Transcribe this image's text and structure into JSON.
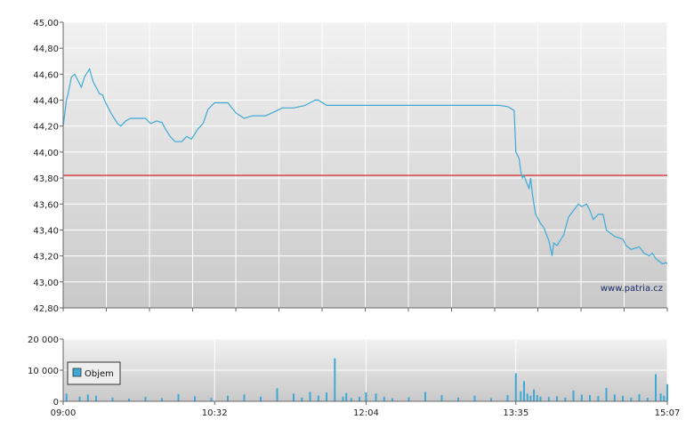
{
  "watermark": "www.patria.cz",
  "colors": {
    "price_line": "#3fa9d6",
    "reference_line": "#d94a4a",
    "volume_bar": "#3fa9d6",
    "grid": "#ffffff",
    "plot_bg_top": "#f2f2f2",
    "plot_bg_bottom": "#c9c9c9"
  },
  "chart_data": [
    {
      "type": "line",
      "y_ticks": [
        "45,00",
        "44,80",
        "44,60",
        "44,40",
        "44,20",
        "44,00",
        "43,80",
        "43,60",
        "43,40",
        "43,20",
        "43,00",
        "42,80"
      ],
      "ylim": [
        42.8,
        45.0
      ],
      "xlim": [
        "09:00",
        "15:07"
      ],
      "reference_value": 43.82,
      "grid": true,
      "series": [
        {
          "x": [
            "09:00",
            "09:02",
            "09:03",
            "09:05",
            "09:07",
            "09:11",
            "09:13",
            "09:14",
            "09:16",
            "09:18",
            "09:19",
            "09:20",
            "09:22",
            "09:24",
            "09:25",
            "09:27",
            "09:29",
            "09:33",
            "09:35",
            "09:38",
            "09:41",
            "09:46",
            "09:50",
            "09:53",
            "09:57",
            "09:59",
            "10:00",
            "10:02",
            "10:05",
            "10:08",
            "10:12",
            "10:15",
            "10:18",
            "10:22",
            "10:25",
            "10:28",
            "10:32",
            "10:40",
            "10:45",
            "10:50",
            "10:55",
            "11:03",
            "11:10",
            "11:13",
            "11:20",
            "11:27",
            "11:30",
            "11:33",
            "11:35",
            "11:40",
            "11:44",
            "11:46",
            "11:48",
            "11:52",
            "11:55",
            "11:58",
            "12:04",
            "12:10",
            "12:15",
            "12:20",
            "12:25",
            "12:30",
            "12:35",
            "12:40",
            "12:45",
            "12:50",
            "12:55",
            "13:00",
            "13:05",
            "13:10",
            "13:15",
            "13:20",
            "13:25",
            "13:30",
            "13:34",
            "13:35",
            "13:37",
            "13:38",
            "13:39",
            "13:40",
            "13:42",
            "13:43",
            "13:44",
            "13:45",
            "13:46",
            "13:47",
            "13:48",
            "13:50",
            "13:52",
            "13:54",
            "13:55",
            "13:57",
            "13:58",
            "14:00",
            "14:02",
            "14:04",
            "14:07",
            "14:10",
            "14:13",
            "14:15",
            "14:18",
            "14:20",
            "14:22",
            "14:25",
            "14:28",
            "14:30",
            "14:35",
            "14:40",
            "14:42",
            "14:45",
            "14:50",
            "14:53",
            "14:56",
            "14:58",
            "15:00",
            "15:02",
            "15:04",
            "15:05",
            "15:06",
            "15:07"
          ],
          "values": [
            44.2,
            44.4,
            44.45,
            44.58,
            44.6,
            44.5,
            44.58,
            44.6,
            44.64,
            44.55,
            44.52,
            44.5,
            44.45,
            44.44,
            44.4,
            44.35,
            44.3,
            44.22,
            44.2,
            44.24,
            44.26,
            44.26,
            44.26,
            44.22,
            44.24,
            44.23,
            44.23,
            44.18,
            44.12,
            44.08,
            44.08,
            44.12,
            44.1,
            44.18,
            44.22,
            44.33,
            44.38,
            44.38,
            44.3,
            44.26,
            44.28,
            44.28,
            44.32,
            44.34,
            44.34,
            44.36,
            44.38,
            44.4,
            44.4,
            44.36,
            44.36,
            44.36,
            44.36,
            44.36,
            44.36,
            44.36,
            44.36,
            44.36,
            44.36,
            44.36,
            44.36,
            44.36,
            44.36,
            44.36,
            44.36,
            44.36,
            44.36,
            44.36,
            44.36,
            44.36,
            44.36,
            44.36,
            44.36,
            44.35,
            44.32,
            44.0,
            43.95,
            43.85,
            43.8,
            43.82,
            43.75,
            43.72,
            43.8,
            43.68,
            43.6,
            43.52,
            43.5,
            43.45,
            43.42,
            43.35,
            43.32,
            43.2,
            43.3,
            43.28,
            43.32,
            43.36,
            43.5,
            43.55,
            43.6,
            43.58,
            43.6,
            43.55,
            43.48,
            43.52,
            43.52,
            43.4,
            43.35,
            43.33,
            43.28,
            43.25,
            43.27,
            43.22,
            43.2,
            43.22,
            43.18,
            43.16,
            43.14,
            43.14,
            43.15,
            43.14
          ]
        }
      ]
    },
    {
      "type": "bar",
      "legend": [
        "Objem"
      ],
      "legend_position": "left",
      "y_ticks": [
        "20 000",
        "10 000",
        "0"
      ],
      "ylim": [
        0,
        20000
      ],
      "x_ticks": [
        "09:00",
        "10:32",
        "12:04",
        "13:35",
        "15:07"
      ],
      "grid": true,
      "series": [
        {
          "name": "Objem",
          "x": [
            "09:02",
            "09:10",
            "09:15",
            "09:20",
            "09:30",
            "09:40",
            "09:50",
            "10:00",
            "10:10",
            "10:20",
            "10:30",
            "10:40",
            "10:50",
            "11:00",
            "11:10",
            "11:20",
            "11:25",
            "11:30",
            "11:35",
            "11:40",
            "11:45",
            "11:50",
            "11:52",
            "11:55",
            "12:00",
            "12:04",
            "12:10",
            "12:15",
            "12:20",
            "12:30",
            "12:40",
            "12:50",
            "13:00",
            "13:10",
            "13:20",
            "13:30",
            "13:35",
            "13:38",
            "13:40",
            "13:42",
            "13:44",
            "13:46",
            "13:48",
            "13:50",
            "13:55",
            "14:00",
            "14:05",
            "14:10",
            "14:15",
            "14:20",
            "14:25",
            "14:30",
            "14:35",
            "14:40",
            "14:45",
            "14:50",
            "14:55",
            "15:00",
            "15:03",
            "15:05",
            "15:07"
          ],
          "values": [
            2500,
            1500,
            2200,
            1800,
            1200,
            900,
            1400,
            1000,
            2300,
            1600,
            1100,
            1800,
            2200,
            1500,
            4200,
            2500,
            1200,
            3000,
            1900,
            2800,
            13800,
            1500,
            2600,
            1000,
            1400,
            2900,
            2500,
            1500,
            1000,
            1300,
            3000,
            2000,
            1200,
            1800,
            1000,
            2000,
            9000,
            3200,
            6500,
            2500,
            1800,
            3800,
            2000,
            1500,
            1400,
            1600,
            1200,
            3500,
            2100,
            2000,
            1700,
            4300,
            2200,
            1700,
            1200,
            2300,
            1100,
            8700,
            2500,
            1800,
            5500
          ]
        }
      ]
    }
  ]
}
